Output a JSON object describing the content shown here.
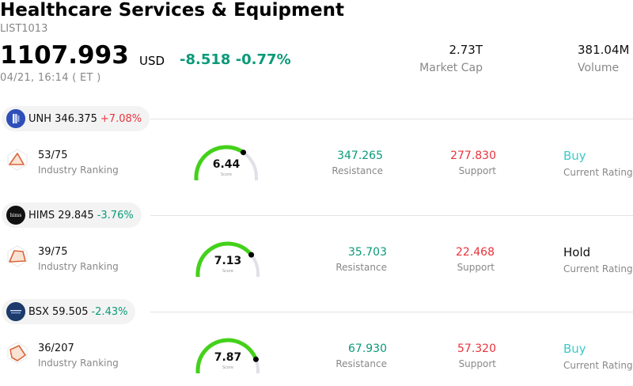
{
  "header": {
    "title": "Healthcare Services & Equipment",
    "code": "LIST1013",
    "price": "1107.993",
    "currency": "USD",
    "change": "-8.518",
    "change_pct": "-0.77%",
    "time": "04/21, 16:14  ( ET )",
    "market_cap_value": "2.73T",
    "market_cap_label": "Market Cap",
    "volume_value": "381.04M",
    "volume_label": "Volume"
  },
  "colors": {
    "up": "#e8333c",
    "down": "#0a9a78",
    "buy": "#3fc8c8",
    "gauge_fill": "#44d11a",
    "gauge_track": "#e0e0e8"
  },
  "stocks": [
    {
      "ticker": "UNH 346.375",
      "change_pct": "+7.08%",
      "logo": "unh-logo",
      "rank": "53/75",
      "rank_label": "Industry Ranking",
      "score": "6.44",
      "score_label": "Score",
      "score_value": 6.44,
      "resistance": "347.265",
      "resistance_label": "Resistance",
      "support": "277.830",
      "support_label": "Support",
      "rating": "Buy",
      "rating_label": "Current Rating"
    },
    {
      "ticker": "HIMS 29.845",
      "change_pct": "-3.76%",
      "logo": "hims-logo",
      "logo_text": "hims",
      "rank": "39/75",
      "rank_label": "Industry Ranking",
      "score": "7.13",
      "score_label": "Score",
      "score_value": 7.13,
      "resistance": "35.703",
      "resistance_label": "Resistance",
      "support": "22.468",
      "support_label": "Support",
      "rating": "Hold",
      "rating_label": "Current Rating"
    },
    {
      "ticker": "BSX 59.505",
      "change_pct": "-2.43%",
      "logo": "bsx-logo",
      "rank": "36/207",
      "rank_label": "Industry Ranking",
      "score": "7.87",
      "score_label": "Score",
      "score_value": 7.87,
      "resistance": "67.930",
      "resistance_label": "Resistance",
      "support": "57.320",
      "support_label": "Support",
      "rating": "Buy",
      "rating_label": "Current Rating"
    }
  ]
}
